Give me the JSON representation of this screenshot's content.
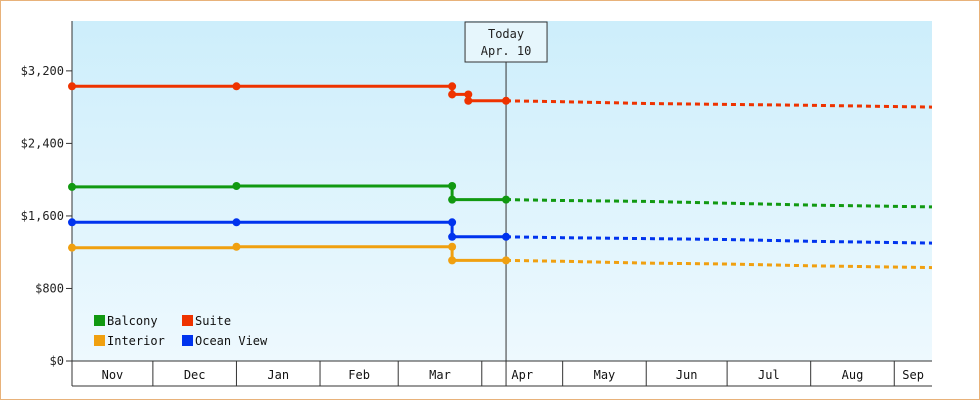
{
  "chart_data": {
    "type": "line",
    "y_tick_labels": [
      "$0",
      "$800",
      "$1,600",
      "$2,400",
      "$3,200"
    ],
    "y_ticks": [
      0,
      800,
      1600,
      2400,
      3200
    ],
    "ylim": [
      0,
      3750
    ],
    "x_range": [
      "2023-11-01",
      "2024-09-15"
    ],
    "months": [
      {
        "label": "Nov",
        "start": "2023-11-01",
        "end": "2023-12-01"
      },
      {
        "label": "Dec",
        "start": "2023-12-01",
        "end": "2024-01-01"
      },
      {
        "label": "Jan",
        "start": "2024-01-01",
        "end": "2024-02-01"
      },
      {
        "label": "Feb",
        "start": "2024-02-01",
        "end": "2024-03-01"
      },
      {
        "label": "Mar",
        "start": "2024-03-01",
        "end": "2024-04-01"
      },
      {
        "label": "Apr",
        "start": "2024-04-01",
        "end": "2024-05-01"
      },
      {
        "label": "May",
        "start": "2024-05-01",
        "end": "2024-06-01"
      },
      {
        "label": "Jun",
        "start": "2024-06-01",
        "end": "2024-07-01"
      },
      {
        "label": "Jul",
        "start": "2024-07-01",
        "end": "2024-08-01"
      },
      {
        "label": "Aug",
        "start": "2024-08-01",
        "end": "2024-09-01"
      },
      {
        "label": "Sep",
        "start": "2024-09-01",
        "end": "2024-09-15"
      }
    ],
    "today": {
      "line1": "Today",
      "line2": "Apr. 10",
      "date": "2024-04-10"
    },
    "grid": false,
    "legend_position": "bottom-left",
    "series": [
      {
        "name": "Balcony",
        "color": "#119911",
        "actual": [
          [
            "2023-11-01",
            1920
          ],
          [
            "2024-01-01",
            1920
          ],
          [
            "2024-01-01",
            1930
          ],
          [
            "2024-03-21",
            1930
          ],
          [
            "2024-03-21",
            1780
          ],
          [
            "2024-04-10",
            1780
          ]
        ],
        "forecast": [
          [
            "2024-04-10",
            1780
          ],
          [
            "2024-05-01",
            1770
          ],
          [
            "2024-06-01",
            1760
          ],
          [
            "2024-07-01",
            1740
          ],
          [
            "2024-08-01",
            1720
          ],
          [
            "2024-09-15",
            1700
          ]
        ],
        "points": [
          [
            "2023-11-01",
            1920
          ],
          [
            "2024-01-01",
            1930
          ],
          [
            "2024-03-21",
            1930
          ],
          [
            "2024-03-21",
            1780
          ],
          [
            "2024-04-10",
            1780
          ]
        ]
      },
      {
        "name": "Suite",
        "color": "#ee3300",
        "actual": [
          [
            "2023-11-01",
            3030
          ],
          [
            "2024-03-21",
            3030
          ],
          [
            "2024-03-21",
            2940
          ],
          [
            "2024-03-27",
            2940
          ],
          [
            "2024-03-27",
            2870
          ],
          [
            "2024-04-10",
            2870
          ]
        ],
        "forecast": [
          [
            "2024-04-10",
            2870
          ],
          [
            "2024-05-01",
            2860
          ],
          [
            "2024-06-01",
            2840
          ],
          [
            "2024-07-01",
            2830
          ],
          [
            "2024-08-01",
            2820
          ],
          [
            "2024-09-15",
            2800
          ]
        ],
        "points": [
          [
            "2023-11-01",
            3030
          ],
          [
            "2024-01-01",
            3030
          ],
          [
            "2024-03-21",
            3030
          ],
          [
            "2024-03-21",
            2940
          ],
          [
            "2024-03-27",
            2940
          ],
          [
            "2024-03-27",
            2870
          ],
          [
            "2024-04-10",
            2870
          ]
        ]
      },
      {
        "name": "Interior",
        "color": "#f0a010",
        "actual": [
          [
            "2023-11-01",
            1250
          ],
          [
            "2024-01-01",
            1250
          ],
          [
            "2024-01-01",
            1260
          ],
          [
            "2024-03-21",
            1260
          ],
          [
            "2024-03-21",
            1110
          ],
          [
            "2024-04-10",
            1110
          ]
        ],
        "forecast": [
          [
            "2024-04-10",
            1110
          ],
          [
            "2024-05-01",
            1100
          ],
          [
            "2024-06-01",
            1080
          ],
          [
            "2024-07-01",
            1070
          ],
          [
            "2024-08-01",
            1050
          ],
          [
            "2024-09-15",
            1030
          ]
        ],
        "points": [
          [
            "2023-11-01",
            1250
          ],
          [
            "2024-01-01",
            1260
          ],
          [
            "2024-03-21",
            1260
          ],
          [
            "2024-03-21",
            1110
          ],
          [
            "2024-04-10",
            1110
          ]
        ]
      },
      {
        "name": "Ocean View",
        "color": "#0033ee",
        "actual": [
          [
            "2023-11-01",
            1530
          ],
          [
            "2024-03-21",
            1530
          ],
          [
            "2024-03-21",
            1370
          ],
          [
            "2024-04-10",
            1370
          ]
        ],
        "forecast": [
          [
            "2024-04-10",
            1370
          ],
          [
            "2024-05-01",
            1360
          ],
          [
            "2024-06-01",
            1350
          ],
          [
            "2024-07-01",
            1340
          ],
          [
            "2024-08-01",
            1320
          ],
          [
            "2024-09-15",
            1300
          ]
        ],
        "points": [
          [
            "2023-11-01",
            1530
          ],
          [
            "2024-01-01",
            1530
          ],
          [
            "2024-03-21",
            1530
          ],
          [
            "2024-03-21",
            1370
          ],
          [
            "2024-04-10",
            1370
          ]
        ]
      }
    ],
    "legend": [
      {
        "name": "Balcony",
        "color": "#119911"
      },
      {
        "name": "Suite",
        "color": "#ee3300"
      },
      {
        "name": "Interior",
        "color": "#f0a010"
      },
      {
        "name": "Ocean View",
        "color": "#0033ee"
      }
    ]
  }
}
